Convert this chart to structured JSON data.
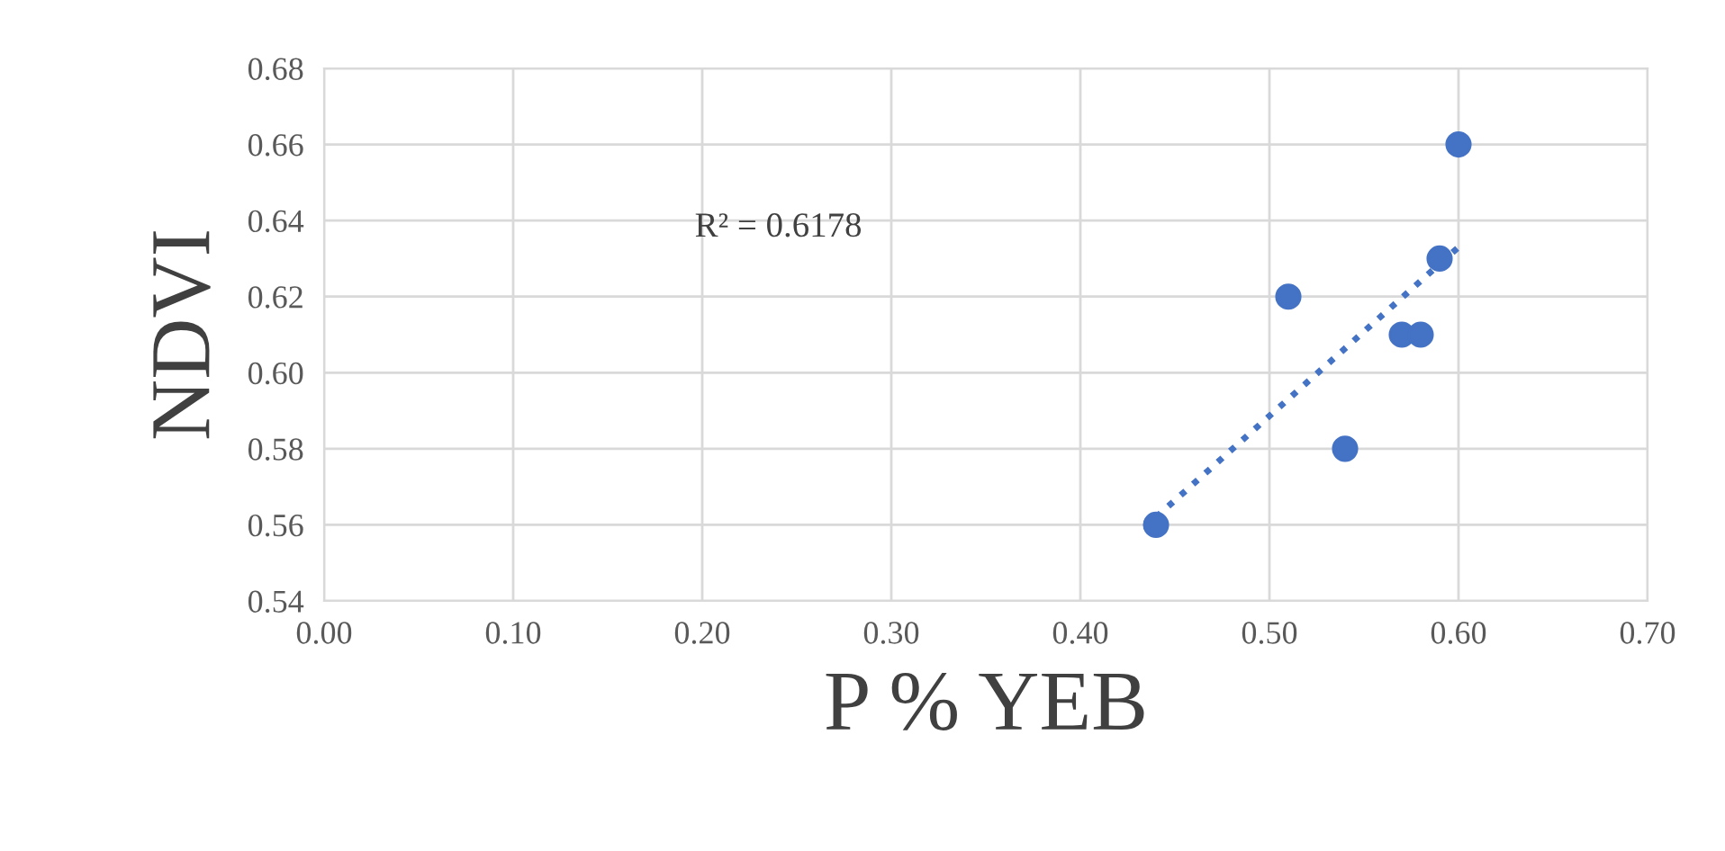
{
  "chart_data": {
    "type": "scatter",
    "xlabel": "P % YEB",
    "ylabel": "NDVI",
    "series": [
      {
        "color": "#4472c4",
        "marker": "circle",
        "x": [
          0.44,
          0.51,
          0.54,
          0.57,
          0.58,
          0.59,
          0.6
        ],
        "values": [
          0.56,
          0.62,
          0.58,
          0.61,
          0.61,
          0.63,
          0.66
        ]
      },
      {
        "type": "line",
        "color": "#4472c4",
        "line_style": "dotted",
        "marker": "none",
        "x": [
          0.44,
          0.6
        ],
        "values": [
          0.562,
          0.633
        ]
      }
    ],
    "annotations": [
      "R² = 0.6178"
    ],
    "xlim": [
      0.0,
      0.7
    ],
    "xticks": [
      {
        "value": 0.0,
        "label": "0.00"
      },
      {
        "value": 0.1,
        "label": "0.10"
      },
      {
        "value": 0.2,
        "label": "0.20"
      },
      {
        "value": 0.3,
        "label": "0.30"
      },
      {
        "value": 0.4,
        "label": "0.40"
      },
      {
        "value": 0.5,
        "label": "0.50"
      },
      {
        "value": 0.6,
        "label": "0.60"
      },
      {
        "value": 0.7,
        "label": "0.70"
      }
    ],
    "ylim": [
      0.54,
      0.68
    ],
    "yticks": [
      0.54,
      0.56,
      {
        "value": 0.58,
        "label": "0.58"
      },
      {
        "value": 0.6,
        "label": "0.60"
      },
      0.62,
      0.64,
      0.66,
      0.68
    ],
    "grid": true,
    "legend": false
  }
}
